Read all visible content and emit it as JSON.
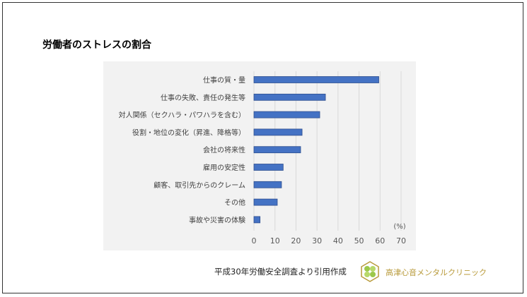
{
  "title": "労働者のストレスの割合",
  "source": "平成30年労働安全調査より引用作成",
  "clinic_name": "高津心音メンタルクリニック",
  "colors": {
    "bar": "#4472c4",
    "bar_edge": "#2f4f8f",
    "grid": "#d9d9d9",
    "background": "#f2f2f2",
    "logo": "#b89a3a"
  },
  "chart_data": {
    "type": "bar",
    "orientation": "horizontal",
    "title": "労働者のストレスの割合",
    "categories": [
      "仕事の質・量",
      "仕事の失敗、責任の発生等",
      "対人関係（セクハラ・パワハラを含む）",
      "役割・地位の変化（昇進、降格等）",
      "会社の将来性",
      "雇用の安定性",
      "顧客、取引先からのクレーム",
      "その他",
      "事故や災害の体験"
    ],
    "values": [
      59.4,
      34.0,
      31.3,
      22.9,
      22.2,
      13.9,
      13.1,
      11.1,
      2.9
    ],
    "xlabel": "(%)",
    "xlim": [
      0,
      70
    ],
    "xticks": [
      0,
      10,
      20,
      30,
      40,
      50,
      60,
      70
    ],
    "grid": true,
    "legend": "none"
  }
}
